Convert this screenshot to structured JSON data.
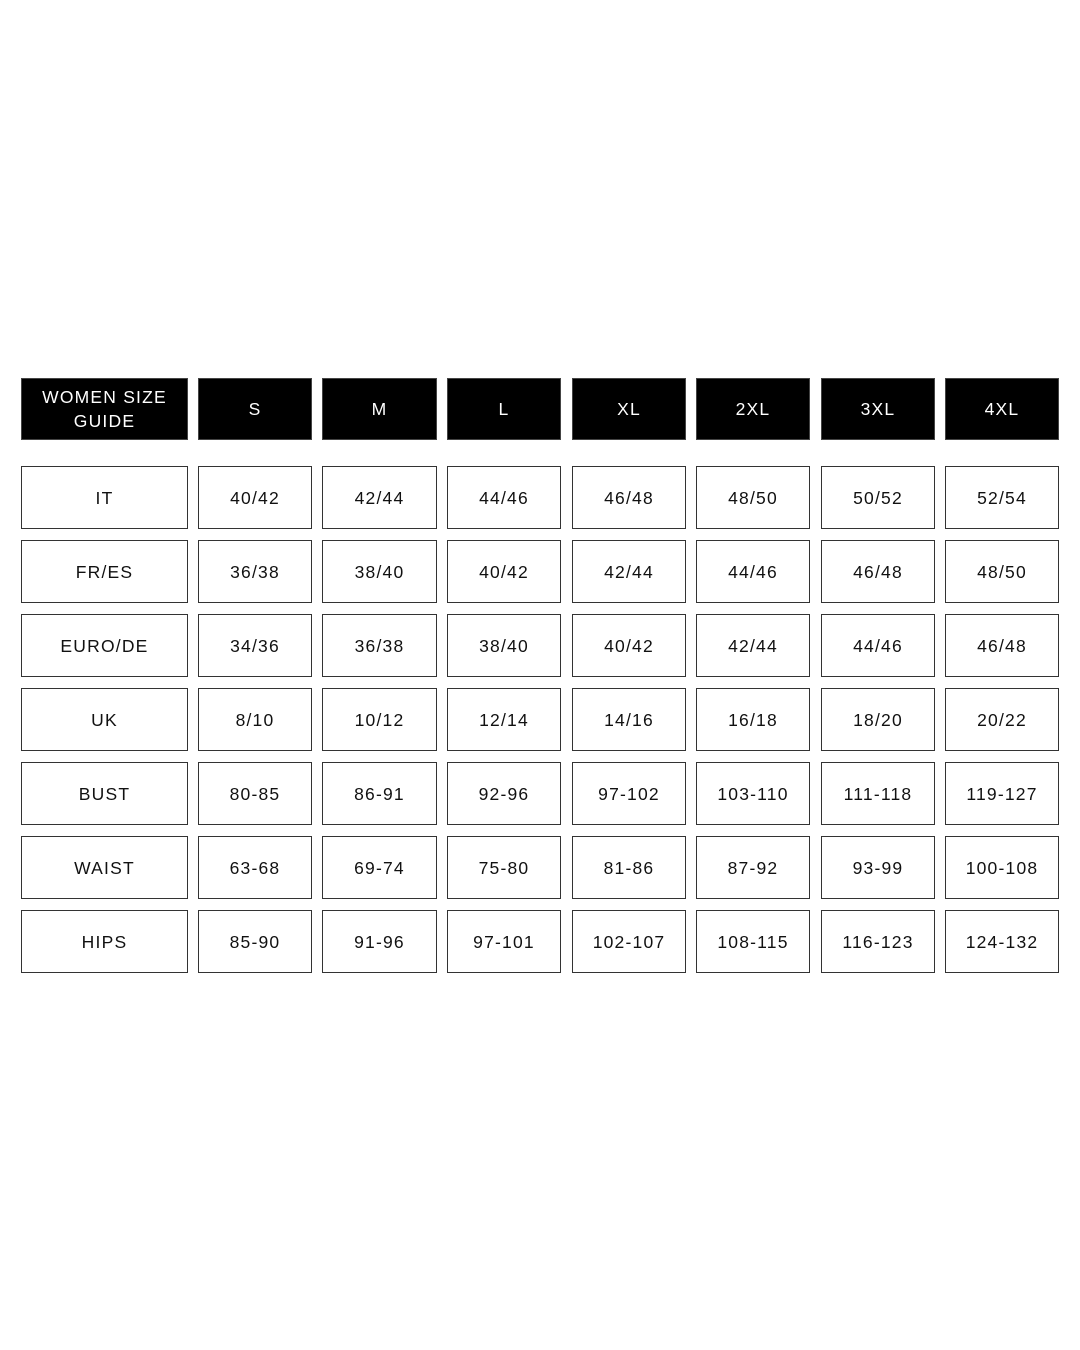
{
  "table": {
    "title": "WOMEN SIZE GUIDE",
    "sizes": [
      "S",
      "M",
      "L",
      "XL",
      "2XL",
      "3XL",
      "4XL"
    ],
    "rows": [
      {
        "label": "IT",
        "values": [
          "40/42",
          "42/44",
          "44/46",
          "46/48",
          "48/50",
          "50/52",
          "52/54"
        ]
      },
      {
        "label": "FR/ES",
        "values": [
          "36/38",
          "38/40",
          "40/42",
          "42/44",
          "44/46",
          "46/48",
          "48/50"
        ]
      },
      {
        "label": "EURO/DE",
        "values": [
          "34/36",
          "36/38",
          "38/40",
          "40/42",
          "42/44",
          "44/46",
          "46/48"
        ]
      },
      {
        "label": "UK",
        "values": [
          "8/10",
          "10/12",
          "12/14",
          "14/16",
          "16/18",
          "18/20",
          "20/22"
        ]
      },
      {
        "label": "BUST",
        "values": [
          "80-85",
          "86-91",
          "92-96",
          "97-102",
          "103-110",
          "111-118",
          "119-127"
        ]
      },
      {
        "label": "WAIST",
        "values": [
          "63-68",
          "69-74",
          "75-80",
          "81-86",
          "87-92",
          "93-99",
          "100-108"
        ]
      },
      {
        "label": "HIPS",
        "values": [
          "85-90",
          "91-96",
          "97-101",
          "102-107",
          "108-115",
          "116-123",
          "124-132"
        ]
      }
    ],
    "colors": {
      "header_bg": "#000000",
      "header_text": "#ffffff",
      "border": "#333333"
    }
  }
}
